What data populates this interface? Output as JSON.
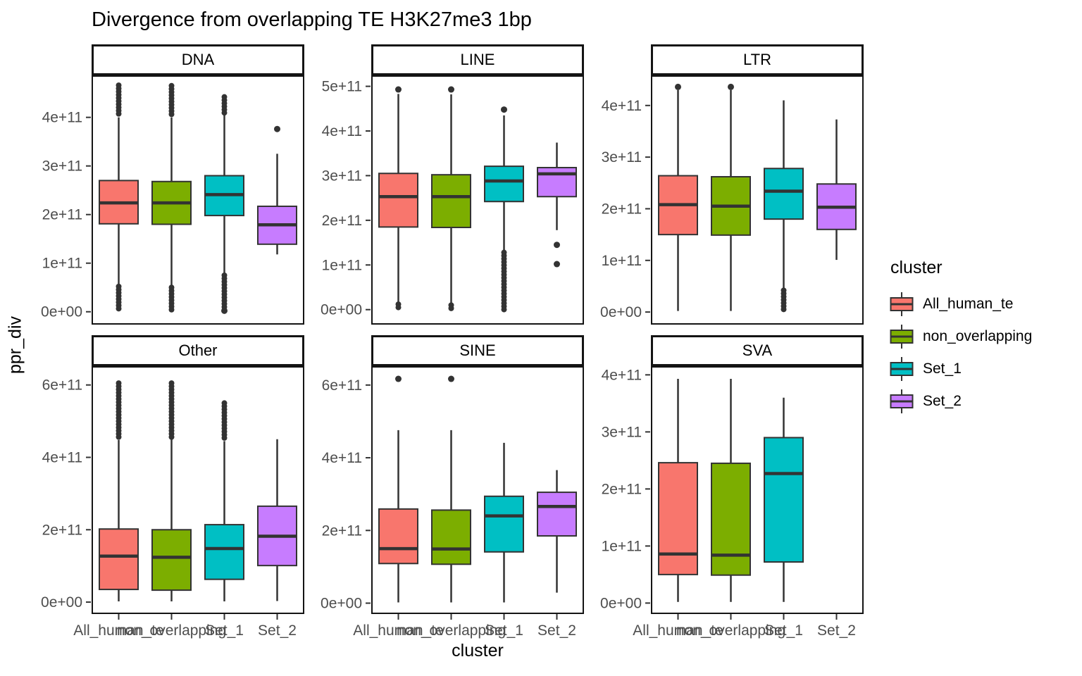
{
  "title": "Divergence from overlapping TE H3K27me3 1bp",
  "axes": {
    "x_title": "cluster",
    "y_title": "ppr_div"
  },
  "legend": {
    "title": "cluster",
    "entries": [
      {
        "label": "All_human_te",
        "color": "#F8766D"
      },
      {
        "label": "non_overlapping",
        "color": "#7CAE00"
      },
      {
        "label": "Set_1",
        "color": "#00BFC4"
      },
      {
        "label": "Set_2",
        "color": "#C77CFF"
      }
    ]
  },
  "style_colors": {
    "box_border": "#333333",
    "median": "#333333",
    "outlier": "#333333",
    "panel_border": "#141414",
    "axis_text": "#4D4D4D",
    "tick": "#333333"
  },
  "chart_data": {
    "type": "boxplot",
    "faceted": true,
    "grid": "off",
    "legend_position": "right",
    "x_categories": [
      "All_human_te",
      "non_overlapping",
      "Set_1",
      "Set_2"
    ],
    "facets": [
      {
        "label": "DNA",
        "ylim": [
          -25000000000.0,
          485000000000.0
        ],
        "yticks": [
          {
            "v": 0,
            "label": "0e+00"
          },
          {
            "v": 100000000000.0,
            "label": "1e+11"
          },
          {
            "v": 200000000000.0,
            "label": "2e+11"
          },
          {
            "v": 300000000000.0,
            "label": "3e+11"
          },
          {
            "v": 400000000000.0,
            "label": "4e+11"
          }
        ],
        "boxes": [
          {
            "cluster": "All_human_te",
            "q1": 181000000000.0,
            "median": 224000000000.0,
            "q3": 270000000000.0,
            "whisker_low": 55000000000.0,
            "whisker_high": 400000000000.0,
            "outliers": [
              {
                "from": 402000000000.0,
                "to": 466000000000.0
              },
              {
                "from": 2000000000.0,
                "to": 52000000000.0
              }
            ]
          },
          {
            "cluster": "non_overlapping",
            "q1": 180000000000.0,
            "median": 224000000000.0,
            "q3": 268000000000.0,
            "whisker_low": 55000000000.0,
            "whisker_high": 400000000000.0,
            "outliers": [
              {
                "from": 402000000000.0,
                "to": 465000000000.0
              },
              {
                "from": 2000000000.0,
                "to": 50000000000.0
              }
            ]
          },
          {
            "cluster": "Set_1",
            "q1": 198000000000.0,
            "median": 241000000000.0,
            "q3": 280000000000.0,
            "whisker_low": 78000000000.0,
            "whisker_high": 405000000000.0,
            "outliers": [
              {
                "from": 408000000000.0,
                "to": 442000000000.0
              },
              {
                "from": 9000000000.0,
                "to": 75000000000.0
              },
              {
                "at": 2000000000.0
              }
            ]
          },
          {
            "cluster": "Set_2",
            "q1": 139000000000.0,
            "median": 179000000000.0,
            "q3": 217000000000.0,
            "whisker_low": 118000000000.0,
            "whisker_high": 325000000000.0,
            "outliers": [
              {
                "at": 376000000000.0
              }
            ]
          }
        ]
      },
      {
        "label": "LINE",
        "ylim": [
          -32000000000.0,
          523000000000.0
        ],
        "yticks": [
          {
            "v": 0,
            "label": "0e+00"
          },
          {
            "v": 100000000000.0,
            "label": "1e+11"
          },
          {
            "v": 200000000000.0,
            "label": "2e+11"
          },
          {
            "v": 300000000000.0,
            "label": "3e+11"
          },
          {
            "v": 400000000000.0,
            "label": "4e+11"
          },
          {
            "v": 500000000000.0,
            "label": "5e+11"
          }
        ],
        "boxes": [
          {
            "cluster": "All_human_te",
            "q1": 185000000000.0,
            "median": 253000000000.0,
            "q3": 305000000000.0,
            "whisker_low": 13000000000.0,
            "whisker_high": 483000000000.0,
            "outliers": [
              {
                "at": 493000000000.0
              },
              {
                "from": 0,
                "to": 12000000000.0
              }
            ]
          },
          {
            "cluster": "non_overlapping",
            "q1": 184000000000.0,
            "median": 253000000000.0,
            "q3": 302000000000.0,
            "whisker_low": 13000000000.0,
            "whisker_high": 482000000000.0,
            "outliers": [
              {
                "at": 493000000000.0
              },
              {
                "from": 0,
                "to": 10000000000.0
              }
            ]
          },
          {
            "cluster": "Set_1",
            "q1": 242000000000.0,
            "median": 288000000000.0,
            "q3": 321000000000.0,
            "whisker_low": 130000000000.0,
            "whisker_high": 435000000000.0,
            "outliers": [
              {
                "at": 448000000000.0
              },
              {
                "from": 0,
                "to": 128000000000.0
              }
            ]
          },
          {
            "cluster": "Set_2",
            "q1": 253000000000.0,
            "median": 304000000000.0,
            "q3": 318000000000.0,
            "whisker_low": 178000000000.0,
            "whisker_high": 374000000000.0,
            "outliers": [
              {
                "at": 145000000000.0
              },
              {
                "at": 102000000000.0
              }
            ]
          }
        ]
      },
      {
        "label": "LTR",
        "ylim": [
          -23000000000.0,
          457000000000.0
        ],
        "yticks": [
          {
            "v": 0,
            "label": "0e+00"
          },
          {
            "v": 100000000000.0,
            "label": "1e+11"
          },
          {
            "v": 200000000000.0,
            "label": "2e+11"
          },
          {
            "v": 300000000000.0,
            "label": "3e+11"
          },
          {
            "v": 400000000000.0,
            "label": "4e+11"
          }
        ],
        "boxes": [
          {
            "cluster": "All_human_te",
            "q1": 150000000000.0,
            "median": 208000000000.0,
            "q3": 264000000000.0,
            "whisker_low": 2000000000.0,
            "whisker_high": 430000000000.0,
            "outliers": [
              {
                "at": 436000000000.0
              }
            ]
          },
          {
            "cluster": "non_overlapping",
            "q1": 149000000000.0,
            "median": 205000000000.0,
            "q3": 262000000000.0,
            "whisker_low": 2000000000.0,
            "whisker_high": 430000000000.0,
            "outliers": [
              {
                "at": 436000000000.0
              }
            ]
          },
          {
            "cluster": "Set_1",
            "q1": 180000000000.0,
            "median": 234000000000.0,
            "q3": 278000000000.0,
            "whisker_low": 45000000000.0,
            "whisker_high": 410000000000.0,
            "outliers": [
              {
                "from": 2000000000.0,
                "to": 42000000000.0
              }
            ]
          },
          {
            "cluster": "Set_2",
            "q1": 160000000000.0,
            "median": 203000000000.0,
            "q3": 248000000000.0,
            "whisker_low": 101000000000.0,
            "whisker_high": 373000000000.0,
            "outliers": []
          }
        ]
      },
      {
        "label": "Other",
        "ylim": [
          -31000000000.0,
          650000000000.0
        ],
        "yticks": [
          {
            "v": 0,
            "label": "0e+00"
          },
          {
            "v": 200000000000.0,
            "label": "2e+11"
          },
          {
            "v": 400000000000.0,
            "label": "4e+11"
          },
          {
            "v": 600000000000.0,
            "label": "6e+11"
          }
        ],
        "boxes": [
          {
            "cluster": "All_human_te",
            "q1": 35000000000.0,
            "median": 127000000000.0,
            "q3": 202000000000.0,
            "whisker_low": 2000000000.0,
            "whisker_high": 448000000000.0,
            "outliers": [
              {
                "from": 450000000000.0,
                "to": 605000000000.0
              }
            ]
          },
          {
            "cluster": "non_overlapping",
            "q1": 33000000000.0,
            "median": 124000000000.0,
            "q3": 200000000000.0,
            "whisker_low": 2000000000.0,
            "whisker_high": 450000000000.0,
            "outliers": [
              {
                "from": 452000000000.0,
                "to": 605000000000.0
              }
            ]
          },
          {
            "cluster": "Set_1",
            "q1": 63000000000.0,
            "median": 148000000000.0,
            "q3": 214000000000.0,
            "whisker_low": 2000000000.0,
            "whisker_high": 445000000000.0,
            "outliers": [
              {
                "from": 447000000000.0,
                "to": 550000000000.0
              }
            ]
          },
          {
            "cluster": "Set_2",
            "q1": 101000000000.0,
            "median": 182000000000.0,
            "q3": 265000000000.0,
            "whisker_low": 3000000000.0,
            "whisker_high": 450000000000.0,
            "outliers": []
          }
        ]
      },
      {
        "label": "SINE",
        "ylim": [
          -28000000000.0,
          650000000000.0
        ],
        "yticks": [
          {
            "v": 0,
            "label": "0e+00"
          },
          {
            "v": 200000000000.0,
            "label": "2e+11"
          },
          {
            "v": 400000000000.0,
            "label": "4e+11"
          },
          {
            "v": 600000000000.0,
            "label": "6e+11"
          }
        ],
        "boxes": [
          {
            "cluster": "All_human_te",
            "q1": 109000000000.0,
            "median": 150000000000.0,
            "q3": 259000000000.0,
            "whisker_low": 2000000000.0,
            "whisker_high": 476000000000.0,
            "outliers": [
              {
                "at": 617000000000.0
              }
            ]
          },
          {
            "cluster": "non_overlapping",
            "q1": 107000000000.0,
            "median": 149000000000.0,
            "q3": 256000000000.0,
            "whisker_low": 2000000000.0,
            "whisker_high": 476000000000.0,
            "outliers": [
              {
                "at": 617000000000.0
              }
            ]
          },
          {
            "cluster": "Set_1",
            "q1": 141000000000.0,
            "median": 240000000000.0,
            "q3": 294000000000.0,
            "whisker_low": 2000000000.0,
            "whisker_high": 441000000000.0,
            "outliers": []
          },
          {
            "cluster": "Set_2",
            "q1": 185000000000.0,
            "median": 266000000000.0,
            "q3": 305000000000.0,
            "whisker_low": 29000000000.0,
            "whisker_high": 366000000000.0,
            "outliers": []
          }
        ]
      },
      {
        "label": "SVA",
        "ylim": [
          -18000000000.0,
          414000000000.0
        ],
        "yticks": [
          {
            "v": 0,
            "label": "0e+00"
          },
          {
            "v": 100000000000.0,
            "label": "1e+11"
          },
          {
            "v": 200000000000.0,
            "label": "2e+11"
          },
          {
            "v": 300000000000.0,
            "label": "3e+11"
          },
          {
            "v": 400000000000.0,
            "label": "4e+11"
          }
        ],
        "boxes": [
          {
            "cluster": "All_human_te",
            "q1": 50000000000.0,
            "median": 86000000000.0,
            "q3": 246000000000.0,
            "whisker_low": 2000000000.0,
            "whisker_high": 393000000000.0,
            "outliers": []
          },
          {
            "cluster": "non_overlapping",
            "q1": 49000000000.0,
            "median": 84000000000.0,
            "q3": 245000000000.0,
            "whisker_low": 2000000000.0,
            "whisker_high": 393000000000.0,
            "outliers": []
          },
          {
            "cluster": "Set_1",
            "q1": 72000000000.0,
            "median": 227000000000.0,
            "q3": 290000000000.0,
            "whisker_low": 2000000000.0,
            "whisker_high": 360000000000.0,
            "outliers": []
          },
          null
        ]
      }
    ]
  }
}
